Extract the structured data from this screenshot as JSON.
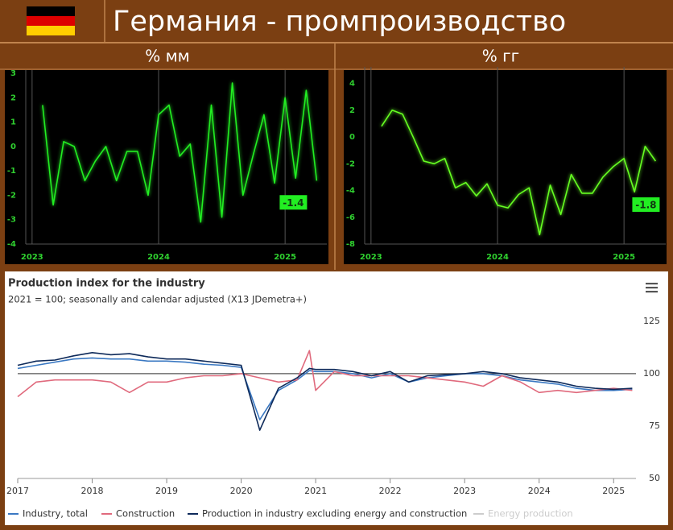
{
  "header": {
    "title": "Германия - промпроизводство",
    "left_label": "% мм",
    "right_label": "% гг"
  },
  "chart_data": [
    {
      "type": "line",
      "background": "#000000",
      "color": "#22ee22",
      "label_color": "#2fd02f",
      "x": [
        2023.083,
        2023.167,
        2023.25,
        2023.333,
        2023.417,
        2023.5,
        2023.583,
        2023.667,
        2023.75,
        2023.833,
        2023.917,
        2024.0,
        2024.083,
        2024.167,
        2024.25,
        2024.333,
        2024.417,
        2024.5,
        2024.583,
        2024.667,
        2024.75,
        2024.833,
        2024.917,
        2025.0,
        2025.083,
        2025.167,
        2025.25
      ],
      "values": [
        1.7,
        -2.4,
        0.2,
        0,
        -1.4,
        -0.6,
        0,
        -1.4,
        -0.2,
        -0.2,
        -2,
        1.3,
        1.7,
        -0.4,
        0.1,
        -3.1,
        1.7,
        -2.9,
        2.6,
        -2,
        -0.3,
        1.3,
        -1.5,
        2.0,
        -1.3,
        2.3,
        -1.4
      ],
      "xlim": [
        2022.95,
        2025.33
      ],
      "xticks": [
        2023,
        2024,
        2025
      ],
      "ylim": [
        -4,
        3
      ],
      "yticks": [
        -4,
        -3,
        -2,
        -1,
        0,
        1,
        2,
        3
      ],
      "annotation": {
        "text": "-1.4",
        "color": "#22ee22"
      }
    },
    {
      "type": "line",
      "background": "#000000",
      "color": "#66ff22",
      "label_color": "#2fd02f",
      "x": [
        2023.083,
        2023.167,
        2023.25,
        2023.333,
        2023.417,
        2023.5,
        2023.583,
        2023.667,
        2023.75,
        2023.833,
        2023.917,
        2024.0,
        2024.083,
        2024.167,
        2024.25,
        2024.333,
        2024.417,
        2024.5,
        2024.583,
        2024.667,
        2024.75,
        2024.833,
        2024.917,
        2025.0,
        2025.083,
        2025.167,
        2025.25
      ],
      "values": [
        0.8,
        2.0,
        1.7,
        0,
        -1.8,
        -2.0,
        -1.6,
        -3.8,
        -3.4,
        -4.4,
        -3.5,
        -5.1,
        -5.3,
        -4.3,
        -3.8,
        -7.3,
        -3.6,
        -5.8,
        -2.8,
        -4.2,
        -4.2,
        -3.0,
        -2.2,
        -1.6,
        -4.1,
        -0.7,
        -1.8
      ],
      "xlim": [
        2022.95,
        2025.33
      ],
      "xticks": [
        2023,
        2024,
        2025
      ],
      "ylim": [
        -8,
        5
      ],
      "yticks": [
        -8,
        -6,
        -4,
        -2,
        0,
        2,
        4
      ],
      "annotation": {
        "text": "-1.8",
        "color": "#22ee22"
      }
    },
    {
      "type": "line",
      "background": "#ffffff",
      "label_color": "#333333",
      "title": "Production index for the industry",
      "subtitle": "2021 = 100; seasonally and calendar adjusted (X13 JDemetra+)",
      "x": [
        2017.0,
        2017.25,
        2017.5,
        2017.75,
        2018.0,
        2018.25,
        2018.5,
        2018.75,
        2019.0,
        2019.25,
        2019.5,
        2019.75,
        2020.0,
        2020.25,
        2020.5,
        2020.75,
        2020.917,
        2021.0,
        2021.25,
        2021.5,
        2021.75,
        2022.0,
        2022.25,
        2022.5,
        2022.75,
        2023.0,
        2023.25,
        2023.5,
        2023.75,
        2024.0,
        2024.25,
        2024.5,
        2024.75,
        2025.0,
        2025.25
      ],
      "series": [
        {
          "name": "Industry, total",
          "color": "#3a78c2",
          "values": [
            102.5,
            104,
            105.5,
            107,
            107.5,
            107,
            107,
            106,
            106,
            105.5,
            104.5,
            104,
            103,
            78,
            92,
            97,
            101.5,
            101,
            101,
            100,
            98,
            100,
            96,
            98,
            99,
            100,
            100,
            99,
            97,
            96,
            95,
            93,
            92,
            92,
            92.5
          ]
        },
        {
          "name": "Construction",
          "color": "#e06a7d",
          "values": [
            89,
            96,
            97,
            97,
            97,
            96,
            91,
            96,
            96,
            98,
            99,
            99,
            100,
            98,
            96,
            97,
            111,
            92,
            101,
            99,
            99,
            99,
            99,
            98,
            97,
            96,
            94,
            99,
            96,
            91,
            92,
            91,
            92,
            93,
            92
          ]
        },
        {
          "name": "Production in industry excluding energy and construction",
          "color": "#0e2a5a",
          "values": [
            104,
            106,
            106.5,
            108.5,
            110,
            109,
            109.5,
            108,
            107,
            107,
            106,
            105,
            104,
            73,
            93,
            98,
            102.5,
            102,
            102,
            101,
            99,
            101,
            96,
            99,
            99.5,
            100,
            101,
            100,
            98,
            97,
            96,
            94,
            93,
            92.5,
            93
          ]
        },
        {
          "name": "Energy production",
          "color": "#cccccc",
          "hidden": true
        }
      ],
      "xlim": [
        2017,
        2025.3
      ],
      "xticks": [
        2017,
        2018,
        2019,
        2020,
        2021,
        2022,
        2023,
        2024,
        2025
      ],
      "ylim": [
        50,
        128
      ],
      "yticks": [
        50,
        75,
        100,
        125
      ],
      "plot_line": 100
    }
  ]
}
